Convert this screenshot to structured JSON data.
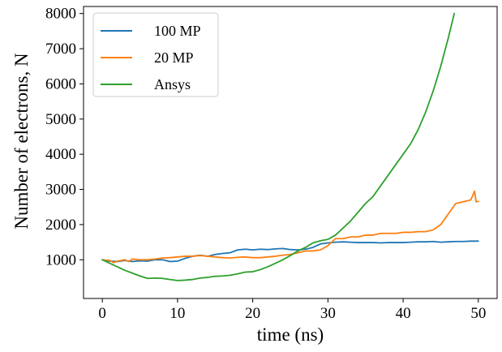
{
  "chart_data": {
    "type": "line",
    "xlabel": "time (ns)",
    "ylabel": "Number of electrons, N",
    "xlim": [
      -2.5,
      52.5
    ],
    "ylim": [
      -100,
      8200
    ],
    "xticks": [
      0,
      10,
      20,
      30,
      40,
      50
    ],
    "yticks": [
      1000,
      2000,
      3000,
      4000,
      5000,
      6000,
      7000,
      8000
    ],
    "grid": false,
    "legend_position": "top-left",
    "series": [
      {
        "name": "100 MP",
        "color": "#1f77b4",
        "x": [
          0,
          1,
          2,
          3,
          4,
          5,
          6,
          7,
          8,
          9,
          10,
          11,
          12,
          13,
          14,
          15,
          16,
          17,
          18,
          19,
          20,
          21,
          22,
          23,
          24,
          25,
          26,
          27,
          28,
          29,
          30,
          31,
          32,
          33,
          34,
          35,
          36,
          37,
          38,
          39,
          40,
          41,
          42,
          43,
          44,
          45,
          46,
          47,
          48,
          49,
          50
        ],
        "y": [
          1000,
          960,
          950,
          980,
          950,
          970,
          960,
          1000,
          1000,
          950,
          960,
          1040,
          1100,
          1130,
          1100,
          1150,
          1180,
          1200,
          1280,
          1300,
          1280,
          1300,
          1290,
          1310,
          1320,
          1290,
          1280,
          1300,
          1350,
          1450,
          1480,
          1500,
          1510,
          1500,
          1490,
          1490,
          1490,
          1480,
          1490,
          1490,
          1490,
          1500,
          1510,
          1510,
          1520,
          1500,
          1510,
          1520,
          1520,
          1530,
          1530
        ]
      },
      {
        "name": "20 MP",
        "color": "#ff7f0e",
        "x": [
          0,
          1,
          1.5,
          2,
          3,
          3.5,
          4,
          5,
          6,
          7,
          8,
          9,
          10,
          11,
          12,
          13,
          14,
          15,
          16,
          17,
          18,
          19,
          20,
          21,
          22,
          23,
          24,
          25,
          26,
          27,
          28,
          29,
          30,
          31,
          32,
          33,
          34,
          35,
          36,
          37,
          38,
          39,
          40,
          41,
          42,
          43,
          44,
          45,
          46,
          47,
          48,
          49,
          49.5,
          49.7,
          50
        ],
        "y": [
          1000,
          980,
          920,
          960,
          1000,
          950,
          1020,
          1000,
          1000,
          1020,
          1050,
          1060,
          1080,
          1100,
          1100,
          1120,
          1100,
          1080,
          1060,
          1050,
          1070,
          1080,
          1060,
          1060,
          1080,
          1100,
          1130,
          1150,
          1200,
          1250,
          1250,
          1280,
          1400,
          1600,
          1600,
          1650,
          1650,
          1700,
          1700,
          1750,
          1750,
          1750,
          1780,
          1780,
          1800,
          1800,
          1850,
          2000,
          2300,
          2600,
          2650,
          2700,
          2950,
          2650,
          2660
        ]
      },
      {
        "name": "Ansys",
        "color": "#2ca02c",
        "x": [
          0,
          1,
          2,
          3,
          4,
          5,
          6,
          7,
          8,
          9,
          10,
          11,
          12,
          13,
          14,
          15,
          16,
          17,
          18,
          19,
          20,
          21,
          22,
          23,
          24,
          25,
          26,
          27,
          28,
          29,
          30,
          31,
          32,
          33,
          34,
          35,
          36,
          37,
          38,
          39,
          40,
          41,
          42,
          43,
          44,
          45,
          46,
          46.8
        ],
        "y": [
          1000,
          900,
          800,
          700,
          620,
          540,
          470,
          480,
          470,
          440,
          410,
          420,
          440,
          480,
          500,
          530,
          540,
          560,
          600,
          650,
          660,
          720,
          800,
          900,
          1000,
          1120,
          1250,
          1350,
          1480,
          1540,
          1580,
          1700,
          1900,
          2100,
          2350,
          2600,
          2800,
          3100,
          3400,
          3700,
          4000,
          4300,
          4700,
          5200,
          5800,
          6500,
          7300,
          8000
        ]
      }
    ]
  }
}
